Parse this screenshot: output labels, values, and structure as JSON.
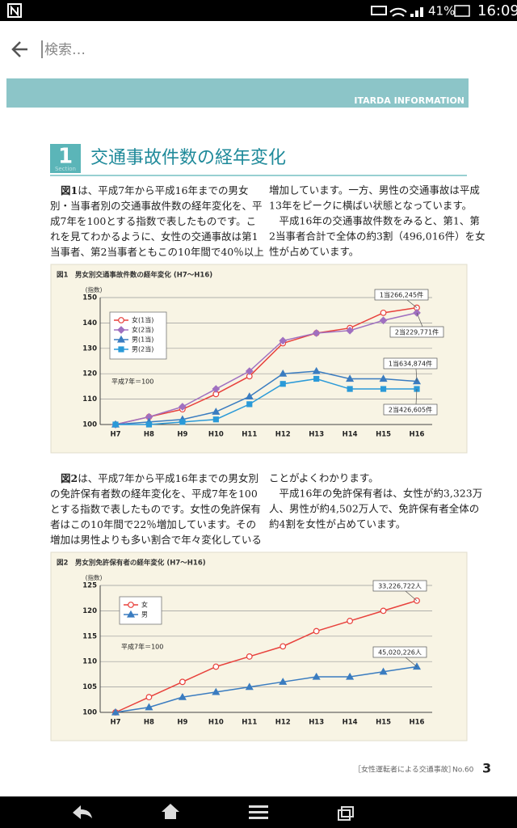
{
  "status_bar": {
    "battery": "41%",
    "time": "16:09"
  },
  "search": {
    "placeholder": "検索…"
  },
  "header": {
    "banner": "ITARDA INFORMATION",
    "section_label": "Section",
    "section_number": "1",
    "title": "交通事故件数の経年変化"
  },
  "text1": {
    "lead": "図1",
    "left": [
      "は、平成7年から平成16年までの男女",
      "別・当事者別の交通事故件数の経年変化を、平",
      "成7年を100とする指数で表したものです。こ",
      "れを見てわかるように、女性の交通事故は第1",
      "当事者、第2当事者ともこの10年間で40％以上"
    ],
    "right": [
      "増加しています。一方、男性の交通事故は平成",
      "13年をピークに横ばい状態となっています。",
      "　平成16年の交通事故件数をみると、第1、第",
      "2当事者合計で全体の約3割（496,016件）を女",
      "性が占めています。"
    ]
  },
  "text2": {
    "lead": "図2",
    "left": [
      "は、平成7年から平成16年までの男女別",
      "の免許保有者数の経年変化を、平成7年を100",
      "とする指数で表したものです。女性の免許保有",
      "者はこの10年間で22％増加しています。その",
      "増加は男性よりも多い割合で年々変化している"
    ],
    "right": [
      "ことがよくわかります。",
      "　平成16年の免許保有者は、女性が約3,323万",
      "人、男性が約4,502万人で、免許保有者全体の",
      "約4割を女性が占めています。"
    ]
  },
  "figures": [
    {
      "type": "line",
      "title": "図1　男女別交通事故件数の経年変化 (H7～H16)",
      "y_label": "(指数)",
      "note": "平成7年＝100",
      "categories": [
        "H7",
        "H8",
        "H9",
        "H10",
        "H11",
        "H12",
        "H13",
        "H14",
        "H15",
        "H16"
      ],
      "series": [
        {
          "name": "女(1当)",
          "color": "#e8413c",
          "marker": "circle",
          "values": [
            100,
            103,
            106,
            112,
            119,
            132,
            136,
            138,
            144,
            146
          ]
        },
        {
          "name": "女(2当)",
          "color": "#a070c0",
          "marker": "diamond",
          "values": [
            100,
            103,
            107,
            114,
            121,
            133,
            136,
            137,
            141,
            144
          ]
        },
        {
          "name": "男(1当)",
          "color": "#3a7cc0",
          "marker": "triangle",
          "values": [
            100,
            101,
            102,
            105,
            111,
            120,
            121,
            118,
            118,
            117
          ]
        },
        {
          "name": "男(2当)",
          "color": "#2a9ad8",
          "marker": "square",
          "values": [
            100,
            100,
            101,
            102,
            108,
            116,
            118,
            114,
            114,
            114
          ]
        }
      ],
      "ylim": [
        100,
        150
      ],
      "yticks": [
        100,
        110,
        120,
        130,
        140,
        150
      ],
      "grid": true,
      "annotations": [
        "1当266,245件",
        "2当229,771件",
        "1当634,874件",
        "2当426,605件"
      ]
    },
    {
      "type": "line",
      "title": "図2　男女別免許保有者の経年変化 (H7～H16)",
      "y_label": "(指数)",
      "note": "平成7年＝100",
      "categories": [
        "H7",
        "H8",
        "H9",
        "H10",
        "H11",
        "H12",
        "H13",
        "H14",
        "H15",
        "H16"
      ],
      "series": [
        {
          "name": "女",
          "color": "#e8413c",
          "marker": "circle",
          "values": [
            100,
            103,
            106,
            109,
            111,
            113,
            116,
            118,
            120,
            122
          ]
        },
        {
          "name": "男",
          "color": "#3a7cc0",
          "marker": "triangle",
          "values": [
            100,
            101,
            103,
            104,
            105,
            106,
            107,
            107,
            108,
            109
          ]
        }
      ],
      "ylim": [
        100,
        125
      ],
      "yticks": [
        100,
        105,
        110,
        115,
        120,
        125
      ],
      "grid": true,
      "annotations": [
        "33,226,722人",
        "45,020,226人"
      ]
    }
  ],
  "footer": {
    "series": "［女性運転者による交通事故］",
    "issue": "No.60",
    "page": "3"
  }
}
